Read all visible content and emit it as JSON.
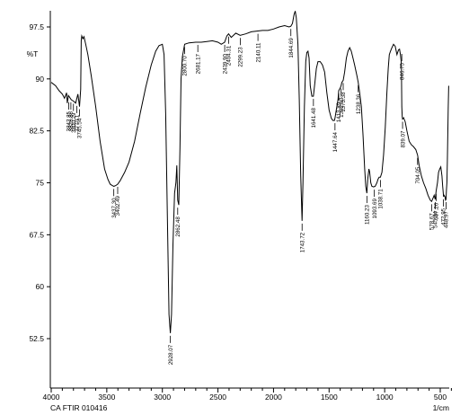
{
  "chart_data": {
    "type": "line",
    "ylabel": "%T",
    "xlabel_unit": "1/cm",
    "footer": "CA   FTIR 010416",
    "xlim": [
      4000,
      400
    ],
    "ylim": [
      45,
      100
    ],
    "x_ticks": [
      "4000",
      "3500",
      "3000",
      "2500",
      "2000",
      "1500",
      "1000",
      "500"
    ],
    "y_ticks": [
      "97.5",
      "90",
      "82.5",
      "75",
      "67.5",
      "60",
      "52.5"
    ],
    "y_tick_values": [
      97.5,
      90,
      82.5,
      75,
      67.5,
      60,
      52.5
    ],
    "x_tick_values": [
      4000,
      3500,
      3000,
      2500,
      2000,
      1500,
      1000,
      500
    ],
    "series": [
      {
        "points": [
          [
            4000,
            89.5
          ],
          [
            3960,
            89.0
          ],
          [
            3930,
            88.3
          ],
          [
            3900,
            87.8
          ],
          [
            3880,
            87.2
          ],
          [
            3862,
            88.0
          ],
          [
            3855,
            86.5
          ],
          [
            3845,
            87.6
          ],
          [
            3820,
            87.0
          ],
          [
            3800,
            86.8
          ],
          [
            3780,
            86.5
          ],
          [
            3760,
            87.8
          ],
          [
            3745,
            86.0
          ],
          [
            3735,
            88.5
          ],
          [
            3730,
            95.5
          ],
          [
            3725,
            96.2
          ],
          [
            3715,
            95.8
          ],
          [
            3705,
            96.1
          ],
          [
            3690,
            95.0
          ],
          [
            3670,
            93.5
          ],
          [
            3640,
            90.5
          ],
          [
            3600,
            86.0
          ],
          [
            3560,
            81.0
          ],
          [
            3520,
            77.0
          ],
          [
            3490,
            75.5
          ],
          [
            3470,
            74.8
          ],
          [
            3450,
            74.6
          ],
          [
            3437,
            74.5
          ],
          [
            3420,
            74.6
          ],
          [
            3402,
            74.8
          ],
          [
            3380,
            75.3
          ],
          [
            3340,
            76.5
          ],
          [
            3300,
            78.0
          ],
          [
            3250,
            81.0
          ],
          [
            3200,
            85.0
          ],
          [
            3150,
            88.8
          ],
          [
            3100,
            92.0
          ],
          [
            3060,
            94.0
          ],
          [
            3030,
            94.8
          ],
          [
            3000,
            95.0
          ],
          [
            2985,
            93.5
          ],
          [
            2970,
            85.0
          ],
          [
            2955,
            70.0
          ],
          [
            2940,
            56.0
          ],
          [
            2928,
            53.3
          ],
          [
            2918,
            56.0
          ],
          [
            2905,
            66.0
          ],
          [
            2890,
            73.5
          ],
          [
            2878,
            75.0
          ],
          [
            2870,
            77.5
          ],
          [
            2862,
            72.5
          ],
          [
            2852,
            71.8
          ],
          [
            2842,
            80.0
          ],
          [
            2832,
            90.0
          ],
          [
            2820,
            93.2
          ],
          [
            2800,
            95.0
          ],
          [
            2760,
            95.2
          ],
          [
            2700,
            95.3
          ],
          [
            2650,
            95.3
          ],
          [
            2600,
            95.4
          ],
          [
            2550,
            95.5
          ],
          [
            2500,
            95.3
          ],
          [
            2470,
            95.0
          ],
          [
            2440,
            95.3
          ],
          [
            2420,
            96.2
          ],
          [
            2404,
            96.5
          ],
          [
            2380,
            96.0
          ],
          [
            2360,
            96.3
          ],
          [
            2340,
            96.6
          ],
          [
            2300,
            96.3
          ],
          [
            2250,
            96.5
          ],
          [
            2200,
            96.8
          ],
          [
            2150,
            96.9
          ],
          [
            2100,
            97.0
          ],
          [
            2050,
            97.0
          ],
          [
            2000,
            97.2
          ],
          [
            1950,
            97.5
          ],
          [
            1900,
            97.7
          ],
          [
            1860,
            97.5
          ],
          [
            1844,
            97.6
          ],
          [
            1830,
            98.0
          ],
          [
            1815,
            99.3
          ],
          [
            1805,
            99.8
          ],
          [
            1795,
            98.8
          ],
          [
            1780,
            95.0
          ],
          [
            1768,
            87.0
          ],
          [
            1755,
            76.0
          ],
          [
            1743,
            69.5
          ],
          [
            1735,
            75.0
          ],
          [
            1722,
            86.0
          ],
          [
            1710,
            92.5
          ],
          [
            1700,
            93.8
          ],
          [
            1690,
            94.0
          ],
          [
            1680,
            93.0
          ],
          [
            1670,
            89.0
          ],
          [
            1655,
            87.5
          ],
          [
            1641,
            87.5
          ],
          [
            1628,
            89.5
          ],
          [
            1615,
            91.5
          ],
          [
            1600,
            92.5
          ],
          [
            1580,
            92.5
          ],
          [
            1560,
            92.0
          ],
          [
            1540,
            91.0
          ],
          [
            1520,
            88.0
          ],
          [
            1500,
            85.5
          ],
          [
            1480,
            84.3
          ],
          [
            1466,
            84.0
          ],
          [
            1452,
            84.0
          ],
          [
            1447,
            84.3
          ],
          [
            1435,
            85.5
          ],
          [
            1420,
            87.0
          ],
          [
            1413,
            88.3
          ],
          [
            1400,
            88.7
          ],
          [
            1392,
            89.0
          ],
          [
            1385,
            89.5
          ],
          [
            1373,
            89.8
          ],
          [
            1360,
            91.0
          ],
          [
            1345,
            93.0
          ],
          [
            1330,
            94.0
          ],
          [
            1315,
            94.5
          ],
          [
            1300,
            94.0
          ],
          [
            1285,
            93.0
          ],
          [
            1270,
            92.0
          ],
          [
            1250,
            90.5
          ],
          [
            1238,
            89.5
          ],
          [
            1225,
            88.0
          ],
          [
            1210,
            86.0
          ],
          [
            1195,
            82.0
          ],
          [
            1180,
            77.0
          ],
          [
            1170,
            74.5
          ],
          [
            1160,
            73.5
          ],
          [
            1152,
            75.5
          ],
          [
            1142,
            77.0
          ],
          [
            1135,
            76.6
          ],
          [
            1125,
            75.0
          ],
          [
            1115,
            74.5
          ],
          [
            1100,
            74.4
          ],
          [
            1085,
            74.5
          ],
          [
            1070,
            75.0
          ],
          [
            1060,
            75.5
          ],
          [
            1050,
            75.8
          ],
          [
            1038,
            75.8
          ],
          [
            1025,
            76.5
          ],
          [
            1010,
            79.0
          ],
          [
            995,
            83.0
          ],
          [
            980,
            88.0
          ],
          [
            968,
            91.5
          ],
          [
            958,
            93.5
          ],
          [
            948,
            94.0
          ],
          [
            935,
            94.5
          ],
          [
            920,
            95.0
          ],
          [
            905,
            94.7
          ],
          [
            890,
            93.5
          ],
          [
            875,
            94.2
          ],
          [
            866,
            94.3
          ],
          [
            858,
            93.5
          ],
          [
            852,
            92.5
          ],
          [
            849,
            91.5
          ],
          [
            846,
            86.0
          ],
          [
            842,
            84.5
          ],
          [
            839,
            84.2
          ],
          [
            830,
            84.4
          ],
          [
            815,
            83.8
          ],
          [
            800,
            82.5
          ],
          [
            780,
            81.0
          ],
          [
            760,
            80.5
          ],
          [
            740,
            80.2
          ],
          [
            720,
            79.8
          ],
          [
            704,
            79.0
          ],
          [
            690,
            77.5
          ],
          [
            670,
            76.0
          ],
          [
            650,
            75.0
          ],
          [
            630,
            74.2
          ],
          [
            610,
            73.2
          ],
          [
            590,
            72.5
          ],
          [
            578,
            72.3
          ],
          [
            565,
            72.8
          ],
          [
            555,
            73.2
          ],
          [
            545,
            72.6
          ],
          [
            537,
            73.8
          ],
          [
            525,
            75.0
          ],
          [
            515,
            76.5
          ],
          [
            505,
            77.0
          ],
          [
            495,
            77.3
          ],
          [
            485,
            76.0
          ],
          [
            478,
            74.5
          ],
          [
            470,
            73.0
          ],
          [
            465,
            73.2
          ],
          [
            458,
            73.0
          ],
          [
            452,
            72.5
          ],
          [
            448,
            72.6
          ],
          [
            444,
            74.0
          ],
          [
            440,
            75.0
          ],
          [
            436,
            78.0
          ],
          [
            432,
            82.0
          ],
          [
            428,
            86.0
          ],
          [
            424,
            89.0
          ]
        ]
      }
    ],
    "peak_labels": [
      {
        "text": "3842.85",
        "x": 3842,
        "y": 87.0
      },
      {
        "text": "3800.29",
        "x": 3800,
        "y": 86.8
      },
      {
        "text": "3770.1",
        "x": 3770,
        "y": 86.5
      },
      {
        "text": "3823.86",
        "x": 3823,
        "y": 87.0
      },
      {
        "text": "3745.54",
        "x": 3745,
        "y": 86.0
      },
      {
        "text": "3437.30",
        "x": 3437,
        "y": 74.5
      },
      {
        "text": "3402.49",
        "x": 3402,
        "y": 74.8
      },
      {
        "text": "2928.07",
        "x": 2928,
        "y": 53.3
      },
      {
        "text": "2862.48",
        "x": 2862,
        "y": 71.8
      },
      {
        "text": "2800.70",
        "x": 2800,
        "y": 95.0
      },
      {
        "text": "2681.17",
        "x": 2681,
        "y": 95.3
      },
      {
        "text": "2439.90",
        "x": 2439,
        "y": 95.3
      },
      {
        "text": "2404.31",
        "x": 2404,
        "y": 96.5
      },
      {
        "text": "2299.23",
        "x": 2299,
        "y": 96.3
      },
      {
        "text": "2140.11",
        "x": 2140,
        "y": 96.9
      },
      {
        "text": "1844.69",
        "x": 1844,
        "y": 97.6
      },
      {
        "text": "1743.72",
        "x": 1743,
        "y": 69.5
      },
      {
        "text": "1641.48",
        "x": 1641,
        "y": 87.5
      },
      {
        "text": "1447.64",
        "x": 1447,
        "y": 84.0
      },
      {
        "text": "1413.89",
        "x": 1413,
        "y": 88.3
      },
      {
        "text": "1392.93",
        "x": 1392,
        "y": 89.0
      },
      {
        "text": "1373.38",
        "x": 1373,
        "y": 89.8
      },
      {
        "text": "1238.36",
        "x": 1238,
        "y": 89.5
      },
      {
        "text": "1160.23",
        "x": 1160,
        "y": 73.5
      },
      {
        "text": "1093.69",
        "x": 1093,
        "y": 74.4
      },
      {
        "text": "1038.71",
        "x": 1038,
        "y": 75.8
      },
      {
        "text": "846.75",
        "x": 846,
        "y": 94.0
      },
      {
        "text": "839.07",
        "x": 839,
        "y": 84.2
      },
      {
        "text": "704.05",
        "x": 704,
        "y": 79.0
      },
      {
        "text": "578.67",
        "x": 578,
        "y": 72.3
      },
      {
        "text": "545.84",
        "x": 545,
        "y": 72.6
      },
      {
        "text": "537.26",
        "x": 537,
        "y": 73.8
      },
      {
        "text": "472.95",
        "x": 472,
        "y": 73.0
      },
      {
        "text": "448.97",
        "x": 448,
        "y": 72.6
      }
    ],
    "grid": false
  }
}
